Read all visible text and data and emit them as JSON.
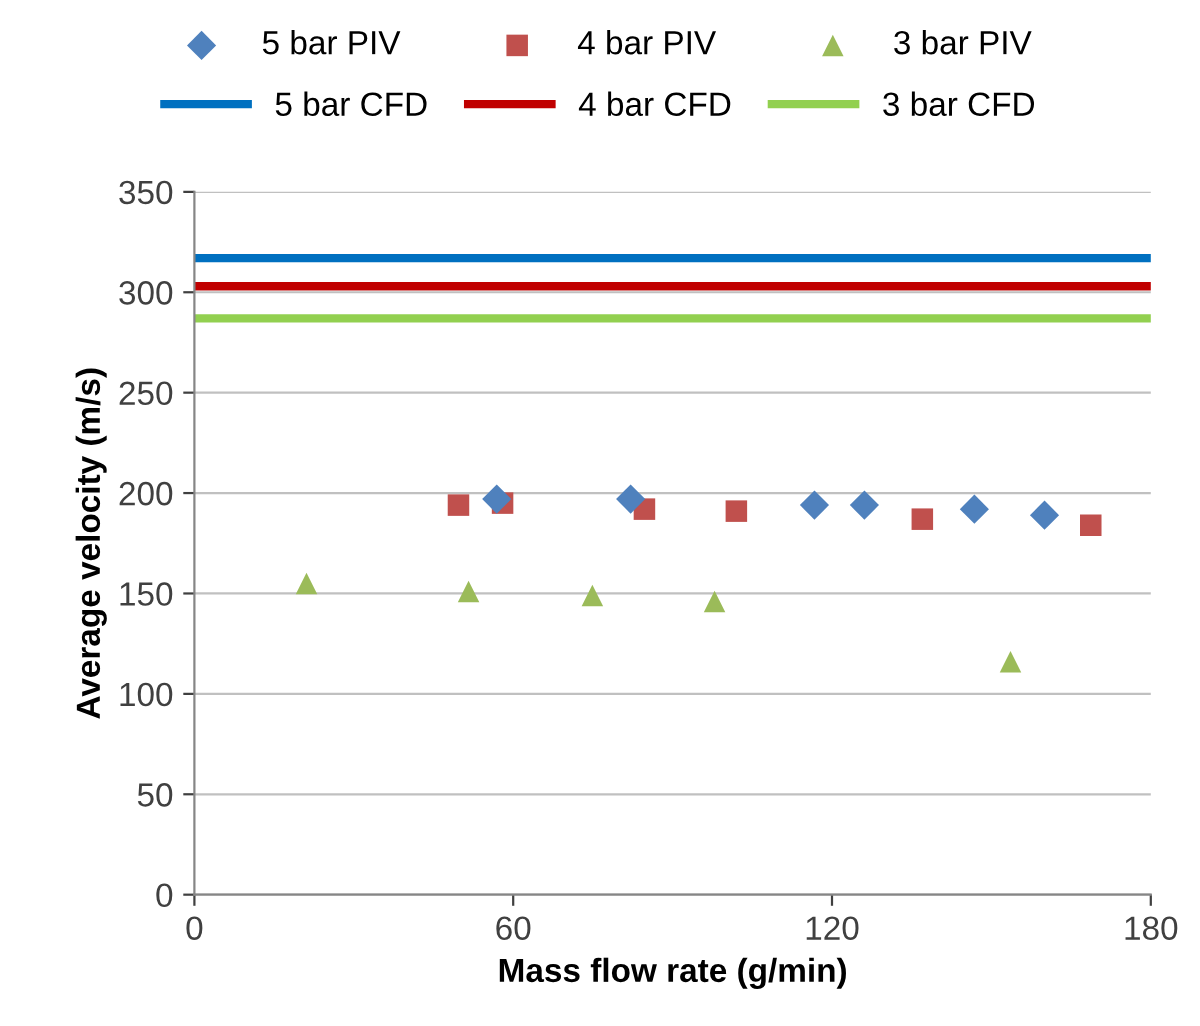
{
  "chart_data": {
    "type": "scatter",
    "xlabel": "Mass flow rate (g/min)",
    "ylabel": "Average velocity (m/s)",
    "xlim": [
      0,
      180
    ],
    "xticks": [
      0,
      60,
      120,
      180
    ],
    "ylim": [
      0,
      350
    ],
    "yticks": [
      0,
      50,
      100,
      150,
      200,
      250,
      300,
      350
    ],
    "grid": "y",
    "legend": "top",
    "series": [
      {
        "name": "5 bar PIV",
        "color": "#4f81bd",
        "marker": "diamond",
        "x": [
          56.9,
          82.1,
          116.7,
          126.1,
          146.8,
          160.0
        ],
        "values": [
          197,
          197,
          194,
          194,
          192,
          189
        ]
      },
      {
        "name": "4 bar PIV",
        "color": "#c0504d",
        "marker": "square",
        "x": [
          49.7,
          58.0,
          84.7,
          102.0,
          137.0,
          168.7
        ],
        "values": [
          194,
          195,
          192,
          191,
          187,
          184
        ]
      },
      {
        "name": "3 bar PIV",
        "color": "#9bbb59",
        "marker": "triangle",
        "x": [
          21.1,
          51.6,
          74.9,
          97.9,
          153.6
        ],
        "values": [
          155,
          151,
          149,
          146,
          116
        ]
      },
      {
        "name": "5 bar CFD",
        "color": "#0070c0",
        "type": "line",
        "marker": "none",
        "x": [
          0,
          180
        ],
        "values": [
          317,
          317
        ]
      },
      {
        "name": "4 bar CFD",
        "color": "#c00000",
        "type": "line",
        "marker": "none",
        "x": [
          0,
          180
        ],
        "values": [
          303,
          303
        ]
      },
      {
        "name": "3 bar CFD",
        "color": "#92d050",
        "type": "line",
        "marker": "none",
        "x": [
          0,
          180
        ],
        "values": [
          287,
          287
        ]
      }
    ]
  }
}
